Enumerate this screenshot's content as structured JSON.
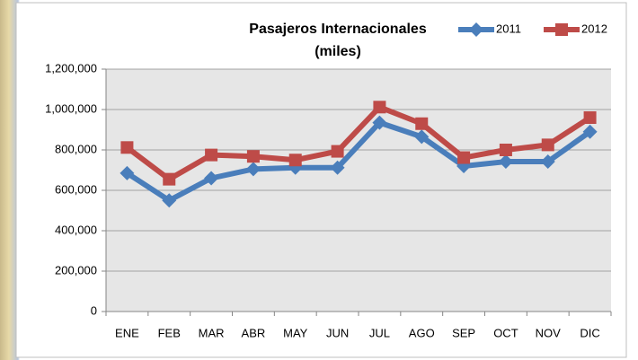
{
  "chart_data": {
    "type": "line",
    "title": "Pasajeros Internacionales",
    "subtitle": "(miles)",
    "categories": [
      "ENE",
      "FEB",
      "MAR",
      "ABR",
      "MAY",
      "JUN",
      "JUL",
      "AGO",
      "SEP",
      "OCT",
      "NOV",
      "DIC"
    ],
    "series": [
      {
        "name": "2011",
        "color": "#4a7ebb",
        "marker": "diamond",
        "values": [
          685000,
          550000,
          660000,
          705000,
          712000,
          712000,
          935000,
          865000,
          720000,
          742000,
          742000,
          890000
        ]
      },
      {
        "name": "2012",
        "color": "#be4b48",
        "marker": "square",
        "values": [
          812000,
          655000,
          775000,
          768000,
          750000,
          793000,
          1012000,
          930000,
          762000,
          800000,
          825000,
          960000
        ]
      }
    ],
    "ylim": [
      0,
      1200000
    ],
    "yticks": [
      0,
      {
        "value": 200000,
        "label": "200,000"
      },
      {
        "value": 400000,
        "label": "400,000"
      },
      {
        "value": 600000,
        "label": "600,000"
      },
      {
        "value": 800000,
        "label": "800,000"
      },
      {
        "value": 1000000,
        "label": "1,000,000"
      },
      {
        "value": 1200000,
        "label": "1,200,000"
      }
    ],
    "grid": true,
    "legend": "top-right"
  }
}
